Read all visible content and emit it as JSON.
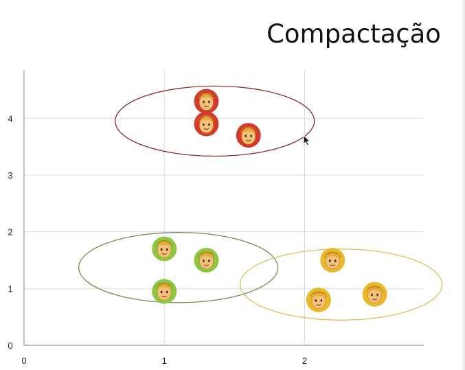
{
  "slide": {
    "title": "Compactação"
  },
  "chart_data": {
    "type": "scatter",
    "title": "Compactação",
    "xlabel": "",
    "ylabel": "",
    "xlim": [
      0,
      2.85
    ],
    "ylim": [
      0,
      4.85
    ],
    "xticks": [
      0,
      1,
      2
    ],
    "yticks": [
      0,
      1,
      2,
      3,
      4
    ],
    "grid": true,
    "marker_icon": "person-face-icon",
    "clusters": [
      {
        "color": "#d23b2b",
        "ring_color": "#8a2b2b",
        "points": [
          {
            "x": 1.3,
            "y": 4.3
          },
          {
            "x": 1.3,
            "y": 3.9
          },
          {
            "x": 1.6,
            "y": 3.7
          }
        ],
        "circle": {
          "cx": 1.36,
          "cy": 3.95,
          "r": 0.71
        }
      },
      {
        "color": "#8dc63f",
        "ring_color": "#6e8f4b",
        "points": [
          {
            "x": 1.0,
            "y": 1.7
          },
          {
            "x": 1.3,
            "y": 1.5
          },
          {
            "x": 1.0,
            "y": 0.95
          }
        ],
        "circle": {
          "cx": 1.1,
          "cy": 1.37,
          "r": 0.71
        }
      },
      {
        "color": "#e8b92a",
        "ring_color": "#d9c060",
        "points": [
          {
            "x": 2.2,
            "y": 1.5
          },
          {
            "x": 2.1,
            "y": 0.8
          },
          {
            "x": 2.5,
            "y": 0.9
          }
        ],
        "circle": {
          "cx": 2.26,
          "cy": 1.07,
          "r": 0.72
        }
      }
    ]
  }
}
